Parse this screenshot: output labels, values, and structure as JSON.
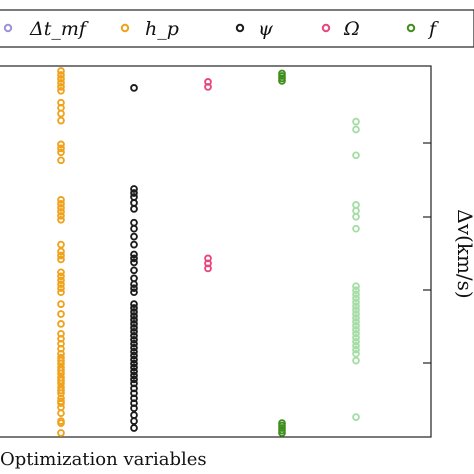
{
  "chart_data": {
    "type": "scatter",
    "xlabel": "Optimization variables",
    "ylabel": "Δv(km/s)",
    "legend_position": "top",
    "series": [
      {
        "name": "Δt_mf",
        "x": 1,
        "color": "#9b93d6",
        "values": []
      },
      {
        "name": "h_p",
        "x": 2,
        "color": "#f0a21c",
        "values": [
          0.0,
          1.0,
          1.2,
          2.0,
          2.6,
          3.0,
          3.2,
          3.5,
          4.0,
          4.3,
          4.6,
          5.0,
          5.3,
          5.6,
          6.0,
          6.3,
          6.6,
          7.0,
          7.3,
          7.6,
          8.0,
          8.5,
          9.0,
          9.5,
          10.0,
          11.0,
          12.0,
          13.0,
          14.2,
          14.6,
          15.0,
          15.4,
          15.8,
          16.2,
          17.5,
          17.9,
          18.3,
          19.0,
          21.5,
          21.9,
          22.3,
          22.7,
          23.1,
          23.5,
          27.5,
          28.3,
          28.7,
          29.1,
          31.5,
          32.2,
          32.8,
          33.3,
          34.5,
          34.9,
          35.3,
          35.7,
          36.1,
          36.5
        ]
      },
      {
        "name": "ψ",
        "x": 3,
        "color": "#1c1c1c",
        "values": [
          0.5,
          1.2,
          1.8,
          2.5,
          3.0,
          3.5,
          4.0,
          4.5,
          5.0,
          5.4,
          5.8,
          6.2,
          6.6,
          7.0,
          7.4,
          7.8,
          8.2,
          8.6,
          9.0,
          9.4,
          9.8,
          10.2,
          10.6,
          11.0,
          11.4,
          11.8,
          12.2,
          12.6,
          13.0,
          14.2,
          14.6,
          15.0,
          15.6,
          16.4,
          17.2,
          17.6,
          18.0,
          19.0,
          19.8,
          20.6,
          21.2,
          22.6,
          23.2,
          23.8,
          24.2,
          24.6,
          34.8
        ]
      },
      {
        "name": "Ω",
        "x": 4,
        "color": "#e8467c",
        "values": [
          16.6,
          17.1,
          17.6,
          34.9,
          35.4
        ]
      },
      {
        "name": "f",
        "x": 5,
        "color": "#3f8e1c",
        "values": [
          0.0,
          0.25,
          0.5,
          0.75,
          1.0,
          35.5,
          35.75,
          36.0,
          36.25
        ]
      },
      {
        "name": "",
        "x": 6,
        "color": "#a6dca6",
        "values": [
          1.6,
          7.3,
          8.0,
          8.4,
          8.8,
          9.2,
          9.6,
          10.0,
          10.4,
          10.8,
          11.2,
          11.6,
          12.0,
          12.4,
          12.8,
          13.2,
          13.6,
          14.0,
          14.4,
          14.8,
          20.6,
          21.8,
          22.4,
          23.0,
          28.0,
          30.6,
          31.4
        ]
      }
    ]
  }
}
